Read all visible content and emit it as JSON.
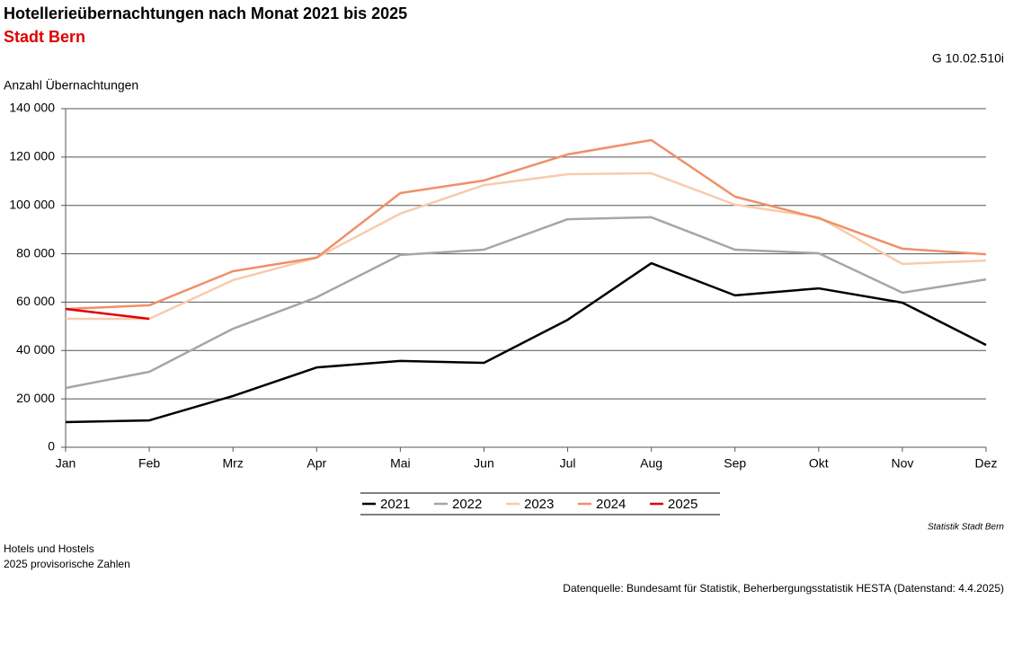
{
  "chart_data": {
    "type": "line",
    "title": "Hotellerieübernachtungen nach Monat 2021 bis 2025",
    "subtitle": "Stadt Bern",
    "code": "G 10.02.510i",
    "y_label": "Anzahl Übernachtungen",
    "categories": [
      "Jan",
      "Feb",
      "Mrz",
      "Apr",
      "Mai",
      "Jun",
      "Jul",
      "Aug",
      "Sep",
      "Okt",
      "Nov",
      "Dez"
    ],
    "series": [
      {
        "name": "2021",
        "color": "#000000",
        "values": [
          10400,
          11100,
          21200,
          33000,
          35700,
          34900,
          52700,
          76100,
          62800,
          65700,
          59800,
          42300
        ]
      },
      {
        "name": "2022",
        "color": "#a6a6a6",
        "values": [
          24500,
          31200,
          49000,
          62000,
          79500,
          81700,
          94300,
          95100,
          81700,
          80200,
          63900,
          69400
        ]
      },
      {
        "name": "2023",
        "color": "#f8cbad",
        "values": [
          53100,
          53100,
          69100,
          78400,
          96600,
          108400,
          112900,
          113300,
          100300,
          95100,
          75800,
          77200
        ]
      },
      {
        "name": "2024",
        "color": "#f09068",
        "values": [
          57200,
          58700,
          72800,
          78400,
          105100,
          110300,
          121100,
          127000,
          103600,
          94700,
          82100,
          79800
        ]
      },
      {
        "name": "2025",
        "color": "#e00000",
        "values": [
          57200,
          53100,
          null,
          null,
          null,
          null,
          null,
          null,
          null,
          null,
          null,
          null
        ]
      }
    ],
    "ylim": [
      0,
      140000
    ],
    "yticks": [
      0,
      {
        "value": 20000,
        "label": "20 000"
      },
      {
        "value": 40000,
        "label": "40 000"
      },
      {
        "value": 60000,
        "label": "60 000"
      },
      {
        "value": 80000,
        "label": "80 000"
      },
      {
        "value": 100000,
        "label": "100 000"
      },
      {
        "value": 120000,
        "label": "120 000"
      },
      {
        "value": 140000,
        "label": "140 000"
      }
    ],
    "grid": true,
    "legend": "bottom",
    "publisher": "Statistik Stadt Bern",
    "notes": [
      "Hotels und Hostels",
      "2025 provisorische Zahlen"
    ],
    "source": "Datenquelle: Bundesamt für Statistik, Beherbergungsstatistik HESTA (Datenstand: 4.4.2025)"
  }
}
